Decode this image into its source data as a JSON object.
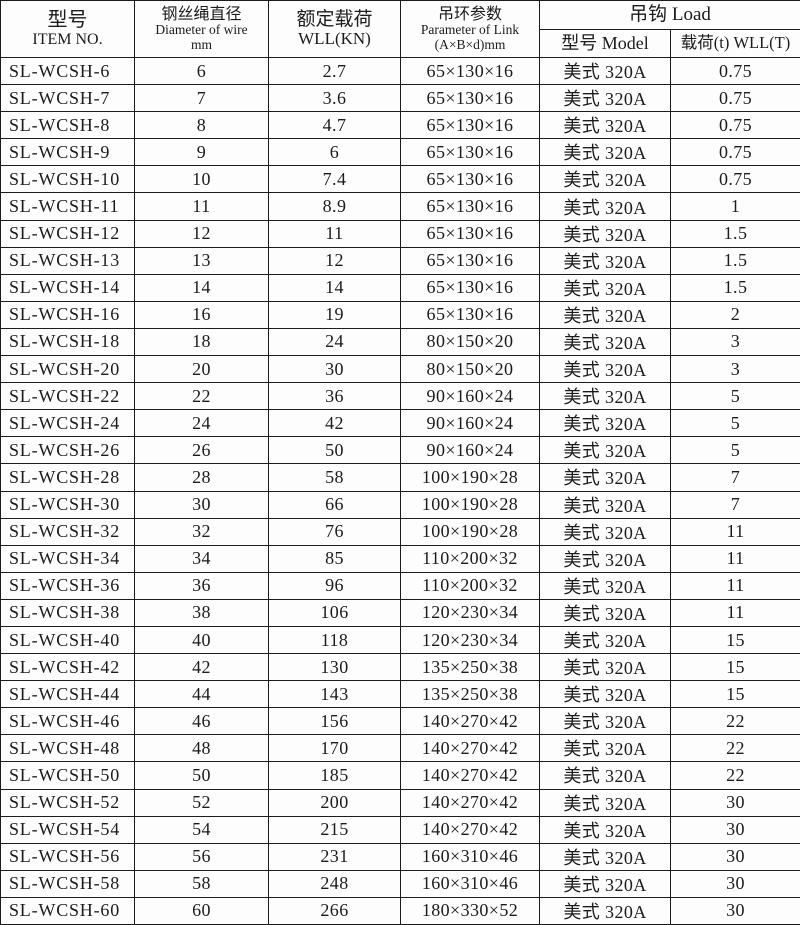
{
  "table": {
    "header": {
      "item": {
        "zh": "型号",
        "en": "ITEM NO."
      },
      "diameter": {
        "zh": "钢丝绳直径",
        "en": "Diameter of wire",
        "unit": "mm"
      },
      "wll": {
        "zh": "额定载荷",
        "en": "WLL(KN)"
      },
      "link": {
        "zh": "吊环参数",
        "en": "Parameter of Link",
        "unit": "(A×B×d)mm"
      },
      "hook": {
        "group": "吊钩 Load",
        "model": "型号 Model",
        "load": "载荷(t) WLL(T)"
      }
    },
    "rows": [
      [
        "SL-WCSH-6",
        "6",
        "2.7",
        "65×130×16",
        "美式 320A",
        "0.75"
      ],
      [
        "SL-WCSH-7",
        "7",
        "3.6",
        "65×130×16",
        "美式 320A",
        "0.75"
      ],
      [
        "SL-WCSH-8",
        "8",
        "4.7",
        "65×130×16",
        "美式 320A",
        "0.75"
      ],
      [
        "SL-WCSH-9",
        "9",
        "6",
        "65×130×16",
        "美式 320A",
        "0.75"
      ],
      [
        "SL-WCSH-10",
        "10",
        "7.4",
        "65×130×16",
        "美式 320A",
        "0.75"
      ],
      [
        "SL-WCSH-11",
        "11",
        "8.9",
        "65×130×16",
        "美式 320A",
        "1"
      ],
      [
        "SL-WCSH-12",
        "12",
        "11",
        "65×130×16",
        "美式 320A",
        "1.5"
      ],
      [
        "SL-WCSH-13",
        "13",
        "12",
        "65×130×16",
        "美式 320A",
        "1.5"
      ],
      [
        "SL-WCSH-14",
        "14",
        "14",
        "65×130×16",
        "美式 320A",
        "1.5"
      ],
      [
        "SL-WCSH-16",
        "16",
        "19",
        "65×130×16",
        "美式 320A",
        "2"
      ],
      [
        "SL-WCSH-18",
        "18",
        "24",
        "80×150×20",
        "美式 320A",
        "3"
      ],
      [
        "SL-WCSH-20",
        "20",
        "30",
        "80×150×20",
        "美式 320A",
        "3"
      ],
      [
        "SL-WCSH-22",
        "22",
        "36",
        "90×160×24",
        "美式 320A",
        "5"
      ],
      [
        "SL-WCSH-24",
        "24",
        "42",
        "90×160×24",
        "美式 320A",
        "5"
      ],
      [
        "SL-WCSH-26",
        "26",
        "50",
        "90×160×24",
        "美式 320A",
        "5"
      ],
      [
        "SL-WCSH-28",
        "28",
        "58",
        "100×190×28",
        "美式 320A",
        "7"
      ],
      [
        "SL-WCSH-30",
        "30",
        "66",
        "100×190×28",
        "美式 320A",
        "7"
      ],
      [
        "SL-WCSH-32",
        "32",
        "76",
        "100×190×28",
        "美式 320A",
        "11"
      ],
      [
        "SL-WCSH-34",
        "34",
        "85",
        "110×200×32",
        "美式 320A",
        "11"
      ],
      [
        "SL-WCSH-36",
        "36",
        "96",
        "110×200×32",
        "美式 320A",
        "11"
      ],
      [
        "SL-WCSH-38",
        "38",
        "106",
        "120×230×34",
        "美式 320A",
        "11"
      ],
      [
        "SL-WCSH-40",
        "40",
        "118",
        "120×230×34",
        "美式 320A",
        "15"
      ],
      [
        "SL-WCSH-42",
        "42",
        "130",
        "135×250×38",
        "美式 320A",
        "15"
      ],
      [
        "SL-WCSH-44",
        "44",
        "143",
        "135×250×38",
        "美式 320A",
        "15"
      ],
      [
        "SL-WCSH-46",
        "46",
        "156",
        "140×270×42",
        "美式 320A",
        "22"
      ],
      [
        "SL-WCSH-48",
        "48",
        "170",
        "140×270×42",
        "美式 320A",
        "22"
      ],
      [
        "SL-WCSH-50",
        "50",
        "185",
        "140×270×42",
        "美式 320A",
        "22"
      ],
      [
        "SL-WCSH-52",
        "52",
        "200",
        "140×270×42",
        "美式 320A",
        "30"
      ],
      [
        "SL-WCSH-54",
        "54",
        "215",
        "140×270×42",
        "美式 320A",
        "30"
      ],
      [
        "SL-WCSH-56",
        "56",
        "231",
        "160×310×46",
        "美式 320A",
        "30"
      ],
      [
        "SL-WCSH-58",
        "58",
        "248",
        "160×310×46",
        "美式 320A",
        "30"
      ],
      [
        "SL-WCSH-60",
        "60",
        "266",
        "180×330×52",
        "美式 320A",
        "30"
      ]
    ]
  }
}
